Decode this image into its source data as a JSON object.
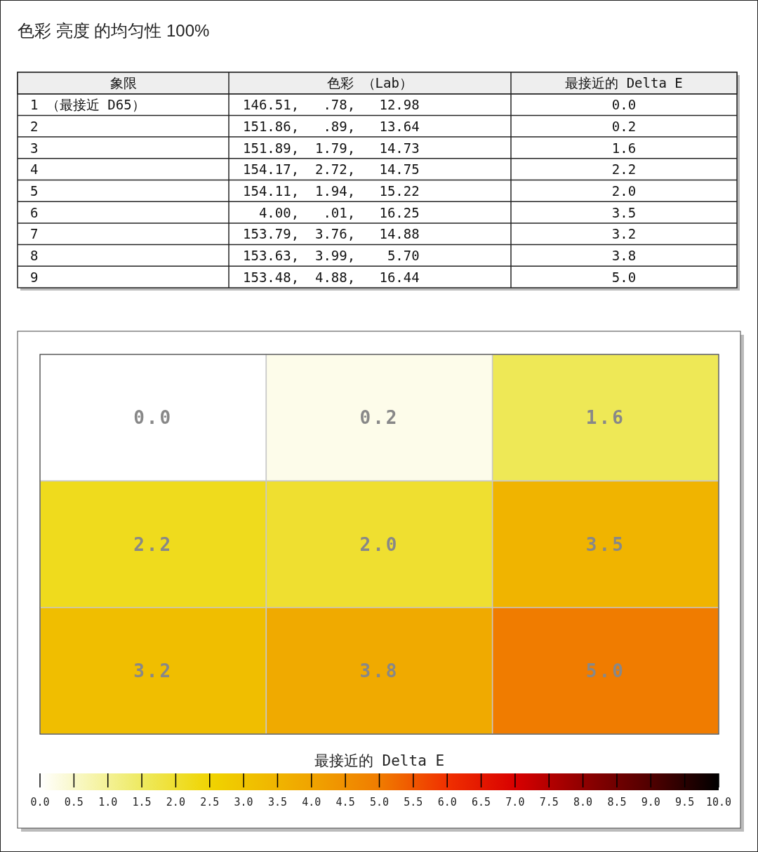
{
  "chart_data": [
    {
      "type": "heatmap",
      "title": "色彩 亮度 的均匀性 100%",
      "ylabel": "象限",
      "categories": [
        "色彩 （Lab）",
        "最接近的 Delta E"
      ],
      "y_categories": [
        "1 （最接近 D65）",
        "2",
        "3",
        "4",
        "5",
        "6",
        "7",
        "8",
        "9"
      ],
      "cells": [
        [
          null,
          null
        ],
        [
          null,
          null
        ],
        [
          null,
          null
        ],
        [
          null,
          null
        ],
        [
          null,
          null
        ],
        [
          null,
          null
        ],
        [
          null,
          null
        ],
        [
          null,
          null
        ],
        [
          null,
          null
        ]
      ],
      "cell_labels": [
        [
          "146.51,   .78,   12.98",
          "0.0"
        ],
        [
          "151.86,   .89,   13.64",
          "0.2"
        ],
        [
          "151.89,  1.79,   14.73",
          "1.6"
        ],
        [
          "154.17,  2.72,   14.75",
          "2.2"
        ],
        [
          "154.11,  1.94,   15.22",
          "2.0"
        ],
        [
          "  4.00,   .01,   16.25",
          "3.5"
        ],
        [
          "153.79,  3.76,   14.88",
          "3.2"
        ],
        [
          "153.63,  3.99,    5.70",
          "3.8"
        ],
        [
          "153.48,  4.88,   16.44",
          "5.0"
        ]
      ]
    },
    {
      "type": "heatmap",
      "categories": [
        null,
        null,
        null
      ],
      "y_categories": [
        null,
        null,
        null
      ],
      "cells": [
        [
          0.0,
          0.2,
          1.6
        ],
        [
          2.2,
          2.0,
          3.5
        ],
        [
          3.2,
          3.8,
          5.0
        ]
      ],
      "cell_labels": [
        [
          "0.0",
          "0.2",
          "1.6"
        ],
        [
          "2.2",
          "2.0",
          "3.5"
        ],
        [
          "3.2",
          "3.8",
          "5.0"
        ]
      ],
      "clabel": "最接近的 Delta E",
      "clim": [
        0,
        10
      ],
      "cticks": [
        {
          "value": 0,
          "label": "0.0"
        },
        {
          "value": 0.5,
          "label": "0.5"
        },
        {
          "value": 1,
          "label": "1.0"
        },
        {
          "value": 1.5,
          "label": "1.5"
        },
        {
          "value": 2,
          "label": "2.0"
        },
        {
          "value": 2.5,
          "label": "2.5"
        },
        {
          "value": 3,
          "label": "3.0"
        },
        {
          "value": 3.5,
          "label": "3.5"
        },
        {
          "value": 4,
          "label": "4.0"
        },
        {
          "value": 4.5,
          "label": "4.5"
        },
        {
          "value": 5,
          "label": "5.0"
        },
        {
          "value": 5.5,
          "label": "5.5"
        },
        {
          "value": 6,
          "label": "6.0"
        },
        {
          "value": 6.5,
          "label": "6.5"
        },
        {
          "value": 7,
          "label": "7.0"
        },
        {
          "value": 7.5,
          "label": "7.5"
        },
        {
          "value": 8,
          "label": "8.0"
        },
        {
          "value": 8.5,
          "label": "8.5"
        },
        {
          "value": 9,
          "label": "9.0"
        },
        {
          "value": 9.5,
          "label": "9.5"
        },
        {
          "value": 10,
          "label": "10.0"
        }
      ]
    }
  ]
}
